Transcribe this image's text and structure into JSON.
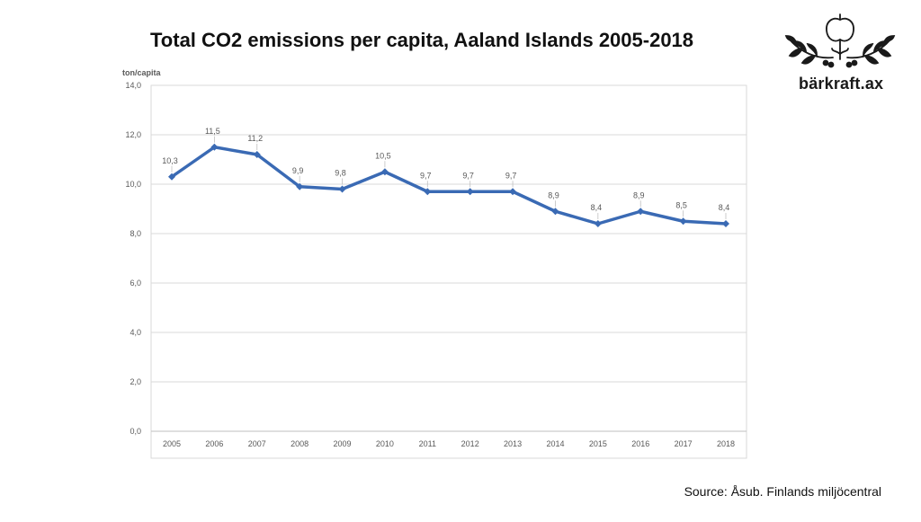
{
  "title": "Total CO2 emissions per capita, Aaland Islands 2005-2018",
  "logo": {
    "text": "bärkraft.ax",
    "icon": "apple-wreath-icon"
  },
  "source": "Source: Åsub. Finlands miljöcentral",
  "colors": {
    "line": "#3A6AB4",
    "grid": "#D9D9D9",
    "text": "#595959"
  },
  "chart_data": {
    "type": "line",
    "title": "Total CO2 emissions per capita, Aaland Islands 2005-2018",
    "ylabel": "ton/capita",
    "xlabel": "",
    "ylim": [
      0,
      14
    ],
    "yticks": [
      "0,0",
      "2,0",
      "4,0",
      "6,0",
      "8,0",
      "10,0",
      "12,0",
      "14,0"
    ],
    "ytick_values": [
      0,
      2,
      4,
      6,
      8,
      10,
      12,
      14
    ],
    "categories": [
      "2005",
      "2006",
      "2007",
      "2008",
      "2009",
      "2010",
      "2011",
      "2012",
      "2013",
      "2014",
      "2015",
      "2016",
      "2017",
      "2018"
    ],
    "series": [
      {
        "name": "CO2 emissions per capita",
        "values": [
          10.3,
          11.5,
          11.2,
          9.9,
          9.8,
          10.5,
          9.7,
          9.7,
          9.7,
          8.9,
          8.4,
          8.9,
          8.5,
          8.4
        ],
        "labels": [
          "10,3",
          "11,5",
          "11,2",
          "9,9",
          "9,8",
          "10,5",
          "9,7",
          "9,7",
          "9,7",
          "8,9",
          "8,4",
          "8,9",
          "8,5",
          "8,4"
        ]
      }
    ],
    "grid": true,
    "legend": "none"
  }
}
